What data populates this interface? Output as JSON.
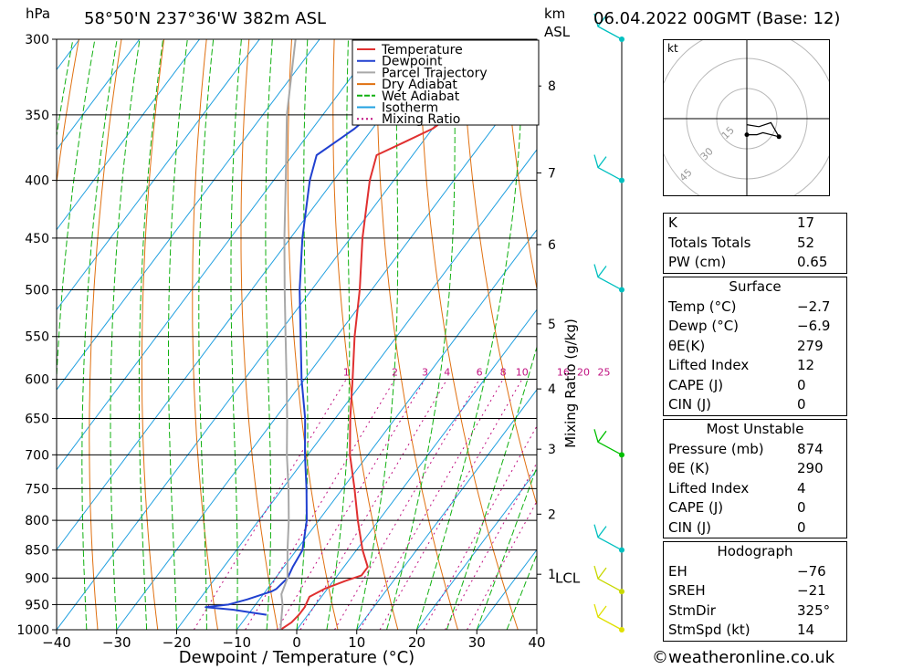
{
  "header": {
    "hpa_label": "hPa",
    "location": "58°50'N  237°36'W  382m  ASL",
    "km_label": "km",
    "asl_label": "ASL",
    "datetime": "06.04.2022  00GMT  (Base: 12)"
  },
  "chart_data": {
    "type": "skew-t",
    "xlabel": "Dewpoint / Temperature (°C)",
    "ylabel_left": "hPa",
    "mixing_ratio_axis_label": "Mixing Ratio (g/kg)",
    "x_ticks": [
      "−40",
      "−30",
      "−20",
      "−10",
      "0",
      "10",
      "20",
      "30",
      "40"
    ],
    "x_tick_values": [
      -40,
      -30,
      -20,
      -10,
      0,
      10,
      20,
      30,
      40
    ],
    "pressure_levels": [
      300,
      350,
      400,
      450,
      500,
      550,
      600,
      650,
      700,
      750,
      800,
      850,
      900,
      950,
      1000
    ],
    "pressure_labels": [
      "300",
      "350",
      "400",
      "450",
      "500",
      "550",
      "600",
      "650",
      "700",
      "750",
      "800",
      "850",
      "900",
      "950",
      "1000"
    ],
    "km_ticks": [
      {
        "label": "8",
        "p": 330
      },
      {
        "label": "7",
        "p": 394
      },
      {
        "label": "6",
        "p": 456
      },
      {
        "label": "5",
        "p": 536
      },
      {
        "label": "4",
        "p": 612
      },
      {
        "label": "3",
        "p": 692
      },
      {
        "label": "2",
        "p": 790
      },
      {
        "label": "1",
        "p": 893
      }
    ],
    "lcl_label": "LCL",
    "lcl_pressure": 900,
    "mixing_ratio_labels": [
      "1",
      "2",
      "3",
      "4",
      "6",
      "8",
      "10",
      "16",
      "20",
      "25"
    ],
    "mixing_ratio_values": [
      1,
      2,
      3,
      4,
      6,
      8,
      10,
      16,
      20,
      25
    ],
    "legend": [
      "Temperature",
      "Dewpoint",
      "Parcel Trajectory",
      "Dry Adiabat",
      "Wet Adiabat",
      "Isotherm",
      "Mixing Ratio"
    ],
    "series": [
      {
        "name": "Temperature",
        "color": "#e03030",
        "points": [
          [
            1000,
            -2.7
          ],
          [
            985,
            -1.8
          ],
          [
            970,
            -1.5
          ],
          [
            955,
            -1.5
          ],
          [
            935,
            -2
          ],
          [
            920,
            -0.5
          ],
          [
            905,
            2
          ],
          [
            895,
            4
          ],
          [
            880,
            4
          ],
          [
            850,
            1
          ],
          [
            800,
            -3.5
          ],
          [
            750,
            -8
          ],
          [
            700,
            -13
          ],
          [
            650,
            -17.5
          ],
          [
            600,
            -22
          ],
          [
            550,
            -27
          ],
          [
            500,
            -32
          ],
          [
            450,
            -38
          ],
          [
            400,
            -44
          ],
          [
            380,
            -46
          ],
          [
            370,
            -43
          ],
          [
            360,
            -40
          ],
          [
            350,
            -38.5
          ],
          [
            340,
            -37.5
          ],
          [
            325,
            -37.5
          ],
          [
            315,
            -35.5
          ],
          [
            305,
            -34.5
          ],
          [
            300,
            -35
          ]
        ]
      },
      {
        "name": "Dewpoint",
        "color": "#2040d0",
        "points": [
          [
            970,
            -6.9
          ],
          [
            965,
            -10
          ],
          [
            960,
            -13
          ],
          [
            955,
            -18
          ],
          [
            950,
            -14.5
          ],
          [
            940,
            -12
          ],
          [
            925,
            -9
          ],
          [
            920,
            -8.5
          ],
          [
            900,
            -8
          ],
          [
            880,
            -8.5
          ],
          [
            850,
            -9
          ],
          [
            800,
            -12
          ],
          [
            750,
            -16
          ],
          [
            700,
            -20.5
          ],
          [
            650,
            -25
          ],
          [
            600,
            -30.5
          ],
          [
            550,
            -36
          ],
          [
            500,
            -42
          ],
          [
            450,
            -48
          ],
          [
            400,
            -54
          ],
          [
            380,
            -56
          ],
          [
            370,
            -54.5
          ],
          [
            360,
            -53
          ],
          [
            350,
            -52
          ],
          [
            340,
            -51.5
          ],
          [
            330,
            -51
          ],
          [
            320,
            -49
          ],
          [
            315,
            -47
          ],
          [
            305,
            -46.5
          ],
          [
            300,
            -46.5
          ]
        ]
      },
      {
        "name": "Parcel Trajectory",
        "color": "#a8a8a8",
        "points": [
          [
            1000,
            -2.7
          ],
          [
            950,
            -5.5
          ],
          [
            930,
            -7
          ],
          [
            900,
            -8
          ],
          [
            850,
            -11.5
          ],
          [
            800,
            -15
          ],
          [
            750,
            -19
          ],
          [
            700,
            -23.5
          ],
          [
            650,
            -28
          ],
          [
            600,
            -33
          ],
          [
            550,
            -38.5
          ],
          [
            500,
            -44.5
          ],
          [
            450,
            -51
          ],
          [
            400,
            -58
          ],
          [
            350,
            -66
          ],
          [
            300,
            -74
          ]
        ]
      }
    ],
    "wind_barbs": [
      {
        "p": 300,
        "color": "#00c0c0"
      },
      {
        "p": 400,
        "color": "#00c0c0"
      },
      {
        "p": 500,
        "color": "#00c0c0"
      },
      {
        "p": 700,
        "color": "#00c000"
      },
      {
        "p": 850,
        "color": "#00c0c0"
      },
      {
        "p": 925,
        "color": "#c8d800"
      },
      {
        "p": 1000,
        "color": "#e0e000"
      }
    ]
  },
  "hodograph": {
    "unit_label": "kt",
    "ring_labels": [
      "15",
      "30",
      "45"
    ],
    "trace_kt": [
      [
        0,
        -8
      ],
      [
        2,
        -8
      ],
      [
        5,
        -8
      ],
      [
        8,
        -7
      ],
      [
        12,
        -8
      ],
      [
        16,
        -9
      ],
      [
        12,
        -2
      ],
      [
        6,
        -4
      ],
      [
        0,
        -3
      ]
    ]
  },
  "indices": {
    "rows": [
      {
        "k": "K",
        "v": "17"
      },
      {
        "k": "Totals Totals",
        "v": "52"
      },
      {
        "k": "PW (cm)",
        "v": "0.65"
      }
    ]
  },
  "surface": {
    "title": "Surface",
    "rows": [
      {
        "k": "Temp (°C)",
        "v": "−2.7"
      },
      {
        "k": "Dewp (°C)",
        "v": "−6.9"
      },
      {
        "k": "θE(K)",
        "v": "279"
      },
      {
        "k": "Lifted Index",
        "v": "12"
      },
      {
        "k": "CAPE (J)",
        "v": "0"
      },
      {
        "k": "CIN (J)",
        "v": "0"
      }
    ]
  },
  "most_unstable": {
    "title": "Most Unstable",
    "rows": [
      {
        "k": "Pressure (mb)",
        "v": "874"
      },
      {
        "k": "θE (K)",
        "v": "290"
      },
      {
        "k": "Lifted Index",
        "v": "4"
      },
      {
        "k": "CAPE (J)",
        "v": "0"
      },
      {
        "k": "CIN (J)",
        "v": "0"
      }
    ]
  },
  "hodograph_table": {
    "title": "Hodograph",
    "rows": [
      {
        "k": "EH",
        "v": "−76"
      },
      {
        "k": "SREH",
        "v": "−21"
      },
      {
        "k": "StmDir",
        "v": "325°"
      },
      {
        "k": "StmSpd (kt)",
        "v": "14"
      }
    ]
  },
  "copyright": "©weatheronline.co.uk",
  "colors": {
    "isotherm": "#20a0e0",
    "dry_adiabat": "#e07010",
    "wet_adiabat": "#10b010",
    "mixing_ratio": "#c01080",
    "temperature": "#e03030",
    "dewpoint": "#2040d0",
    "parcel": "#a8a8a8"
  }
}
